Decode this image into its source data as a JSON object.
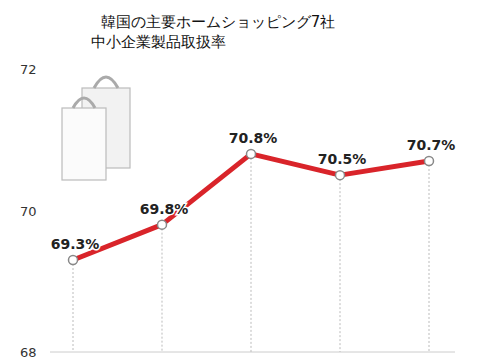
{
  "chart_data": {
    "type": "line",
    "title": "韓国の主要ホームショッピング7社",
    "subtitle": "中小企業製品取扱率",
    "categories": [
      null,
      null,
      null,
      null,
      null
    ],
    "values": [
      69.3,
      69.8,
      70.8,
      70.5,
      70.7
    ],
    "value_labels": [
      "69.3%",
      "69.8%",
      "70.8%",
      "70.5%",
      "70.7%"
    ],
    "color": "#d9242a",
    "marker": "circle",
    "data_labels": true,
    "tick_labels": "y",
    "ylim": [
      68,
      72
    ],
    "yticks": [
      68,
      70,
      72
    ]
  }
}
